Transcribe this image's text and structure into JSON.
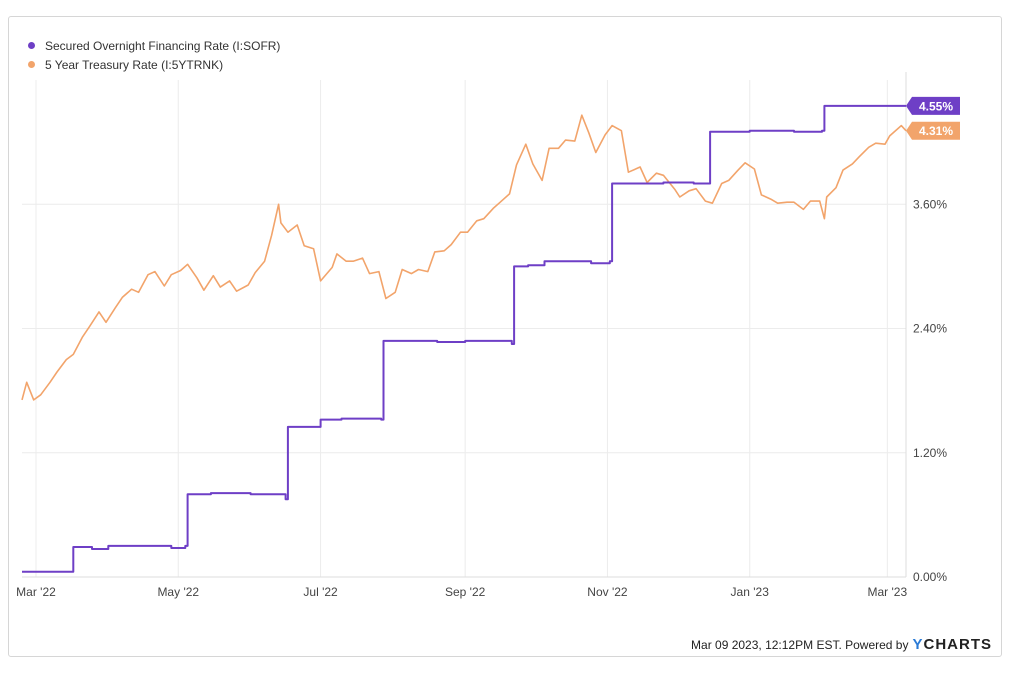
{
  "colors": {
    "sofr": "#6e3fc6",
    "treasury": "#f2a46b",
    "grid": "#ececec",
    "text": "#444444"
  },
  "legend": [
    {
      "label": "Secured Overnight Financing Rate (I:SOFR)",
      "color": "#6e3fc6"
    },
    {
      "label": "5 Year Treasury Rate (I:5YTRNK)",
      "color": "#f2a46b"
    }
  ],
  "footer": {
    "text": "Mar 09 2023, 12:12PM EST. Powered by",
    "brand_y": "Y",
    "brand_rest": "CHARTS"
  },
  "chart_data": {
    "type": "line",
    "ylim": [
      0,
      4.8
    ],
    "y_ticks": [
      {
        "value": 0,
        "label": "0.00%"
      },
      {
        "value": 1.2,
        "label": "1.20%"
      },
      {
        "value": 2.4,
        "label": "2.40%"
      },
      {
        "value": 3.6,
        "label": "3.60%"
      }
    ],
    "x_range": [
      "2022-02-23",
      "2023-03-09"
    ],
    "x_ticks": [
      {
        "date": "2022-03-01",
        "label": "Mar '22"
      },
      {
        "date": "2022-05-01",
        "label": "May '22"
      },
      {
        "date": "2022-07-01",
        "label": "Jul '22"
      },
      {
        "date": "2022-09-01",
        "label": "Sep '22"
      },
      {
        "date": "2022-11-01",
        "label": "Nov '22"
      },
      {
        "date": "2023-01-01",
        "label": "Jan '23"
      },
      {
        "date": "2023-03-01",
        "label": "Mar '23"
      }
    ],
    "grid": true,
    "series": [
      {
        "name": "Secured Overnight Financing Rate (I:SOFR)",
        "color": "#6e3fc6",
        "step": true,
        "last_label": "4.55%",
        "points": [
          [
            "2022-02-23",
            0.05
          ],
          [
            "2022-03-16",
            0.05
          ],
          [
            "2022-03-17",
            0.29
          ],
          [
            "2022-03-25",
            0.27
          ],
          [
            "2022-04-01",
            0.3
          ],
          [
            "2022-04-20",
            0.3
          ],
          [
            "2022-04-28",
            0.28
          ],
          [
            "2022-05-04",
            0.3
          ],
          [
            "2022-05-05",
            0.8
          ],
          [
            "2022-05-15",
            0.81
          ],
          [
            "2022-06-01",
            0.8
          ],
          [
            "2022-06-10",
            0.8
          ],
          [
            "2022-06-16",
            0.75
          ],
          [
            "2022-06-17",
            1.45
          ],
          [
            "2022-06-25",
            1.45
          ],
          [
            "2022-07-01",
            1.52
          ],
          [
            "2022-07-10",
            1.53
          ],
          [
            "2022-07-27",
            1.52
          ],
          [
            "2022-07-28",
            2.28
          ],
          [
            "2022-08-05",
            2.28
          ],
          [
            "2022-08-20",
            2.27
          ],
          [
            "2022-09-01",
            2.28
          ],
          [
            "2022-09-15",
            2.28
          ],
          [
            "2022-09-21",
            2.25
          ],
          [
            "2022-09-22",
            3.0
          ],
          [
            "2022-09-28",
            3.01
          ],
          [
            "2022-10-05",
            3.05
          ],
          [
            "2022-10-15",
            3.05
          ],
          [
            "2022-10-25",
            3.03
          ],
          [
            "2022-11-02",
            3.05
          ],
          [
            "2022-11-03",
            3.8
          ],
          [
            "2022-11-15",
            3.8
          ],
          [
            "2022-11-25",
            3.81
          ],
          [
            "2022-12-08",
            3.8
          ],
          [
            "2022-12-14",
            3.8
          ],
          [
            "2022-12-15",
            4.3
          ],
          [
            "2023-01-01",
            4.31
          ],
          [
            "2023-01-20",
            4.3
          ],
          [
            "2023-02-01",
            4.31
          ],
          [
            "2023-02-02",
            4.55
          ],
          [
            "2023-03-09",
            4.55
          ]
        ]
      },
      {
        "name": "5 Year Treasury Rate (I:5YTRNK)",
        "color": "#f2a46b",
        "step": false,
        "last_label": "4.31%",
        "points": [
          [
            "2022-02-23",
            1.71
          ],
          [
            "2022-02-25",
            1.88
          ],
          [
            "2022-02-28",
            1.71
          ],
          [
            "2022-03-03",
            1.76
          ],
          [
            "2022-03-07",
            1.88
          ],
          [
            "2022-03-10",
            1.98
          ],
          [
            "2022-03-14",
            2.1
          ],
          [
            "2022-03-17",
            2.15
          ],
          [
            "2022-03-21",
            2.32
          ],
          [
            "2022-03-24",
            2.42
          ],
          [
            "2022-03-28",
            2.56
          ],
          [
            "2022-03-31",
            2.46
          ],
          [
            "2022-04-04",
            2.6
          ],
          [
            "2022-04-07",
            2.7
          ],
          [
            "2022-04-11",
            2.78
          ],
          [
            "2022-04-14",
            2.75
          ],
          [
            "2022-04-18",
            2.92
          ],
          [
            "2022-04-21",
            2.95
          ],
          [
            "2022-04-25",
            2.81
          ],
          [
            "2022-04-28",
            2.92
          ],
          [
            "2022-05-02",
            2.96
          ],
          [
            "2022-05-05",
            3.02
          ],
          [
            "2022-05-09",
            2.89
          ],
          [
            "2022-05-12",
            2.77
          ],
          [
            "2022-05-16",
            2.91
          ],
          [
            "2022-05-19",
            2.8
          ],
          [
            "2022-05-23",
            2.86
          ],
          [
            "2022-05-26",
            2.76
          ],
          [
            "2022-05-31",
            2.82
          ],
          [
            "2022-06-03",
            2.94
          ],
          [
            "2022-06-07",
            3.05
          ],
          [
            "2022-06-10",
            3.3
          ],
          [
            "2022-06-13",
            3.6
          ],
          [
            "2022-06-14",
            3.42
          ],
          [
            "2022-06-17",
            3.33
          ],
          [
            "2022-06-21",
            3.4
          ],
          [
            "2022-06-24",
            3.2
          ],
          [
            "2022-06-28",
            3.17
          ],
          [
            "2022-07-01",
            2.86
          ],
          [
            "2022-07-06",
            2.99
          ],
          [
            "2022-07-08",
            3.12
          ],
          [
            "2022-07-12",
            3.05
          ],
          [
            "2022-07-15",
            3.05
          ],
          [
            "2022-07-19",
            3.08
          ],
          [
            "2022-07-22",
            2.93
          ],
          [
            "2022-07-26",
            2.95
          ],
          [
            "2022-07-29",
            2.69
          ],
          [
            "2022-08-02",
            2.75
          ],
          [
            "2022-08-05",
            2.97
          ],
          [
            "2022-08-09",
            2.93
          ],
          [
            "2022-08-12",
            2.97
          ],
          [
            "2022-08-16",
            2.95
          ],
          [
            "2022-08-19",
            3.14
          ],
          [
            "2022-08-23",
            3.15
          ],
          [
            "2022-08-26",
            3.21
          ],
          [
            "2022-08-30",
            3.33
          ],
          [
            "2022-09-02",
            3.33
          ],
          [
            "2022-09-06",
            3.44
          ],
          [
            "2022-09-09",
            3.46
          ],
          [
            "2022-09-13",
            3.56
          ],
          [
            "2022-09-16",
            3.62
          ],
          [
            "2022-09-20",
            3.7
          ],
          [
            "2022-09-23",
            3.98
          ],
          [
            "2022-09-27",
            4.18
          ],
          [
            "2022-09-30",
            3.99
          ],
          [
            "2022-10-04",
            3.83
          ],
          [
            "2022-10-07",
            4.14
          ],
          [
            "2022-10-11",
            4.14
          ],
          [
            "2022-10-14",
            4.22
          ],
          [
            "2022-10-18",
            4.21
          ],
          [
            "2022-10-21",
            4.46
          ],
          [
            "2022-10-24",
            4.29
          ],
          [
            "2022-10-27",
            4.1
          ],
          [
            "2022-10-31",
            4.27
          ],
          [
            "2022-11-03",
            4.36
          ],
          [
            "2022-11-07",
            4.31
          ],
          [
            "2022-11-10",
            3.91
          ],
          [
            "2022-11-15",
            3.96
          ],
          [
            "2022-11-18",
            3.81
          ],
          [
            "2022-11-22",
            3.9
          ],
          [
            "2022-11-25",
            3.88
          ],
          [
            "2022-11-30",
            3.74
          ],
          [
            "2022-12-02",
            3.67
          ],
          [
            "2022-12-06",
            3.73
          ],
          [
            "2022-12-09",
            3.75
          ],
          [
            "2022-12-13",
            3.63
          ],
          [
            "2022-12-16",
            3.61
          ],
          [
            "2022-12-20",
            3.8
          ],
          [
            "2022-12-23",
            3.83
          ],
          [
            "2022-12-27",
            3.93
          ],
          [
            "2022-12-30",
            4.0
          ],
          [
            "2023-01-03",
            3.94
          ],
          [
            "2023-01-06",
            3.69
          ],
          [
            "2023-01-10",
            3.65
          ],
          [
            "2023-01-13",
            3.61
          ],
          [
            "2023-01-17",
            3.62
          ],
          [
            "2023-01-20",
            3.62
          ],
          [
            "2023-01-24",
            3.55
          ],
          [
            "2023-01-27",
            3.63
          ],
          [
            "2023-01-31",
            3.63
          ],
          [
            "2023-02-02",
            3.46
          ],
          [
            "2023-02-03",
            3.67
          ],
          [
            "2023-02-07",
            3.76
          ],
          [
            "2023-02-10",
            3.93
          ],
          [
            "2023-02-14",
            3.99
          ],
          [
            "2023-02-17",
            4.06
          ],
          [
            "2023-02-21",
            4.15
          ],
          [
            "2023-02-24",
            4.19
          ],
          [
            "2023-02-28",
            4.18
          ],
          [
            "2023-03-02",
            4.26
          ],
          [
            "2023-03-07",
            4.36
          ],
          [
            "2023-03-09",
            4.31
          ]
        ]
      }
    ]
  }
}
